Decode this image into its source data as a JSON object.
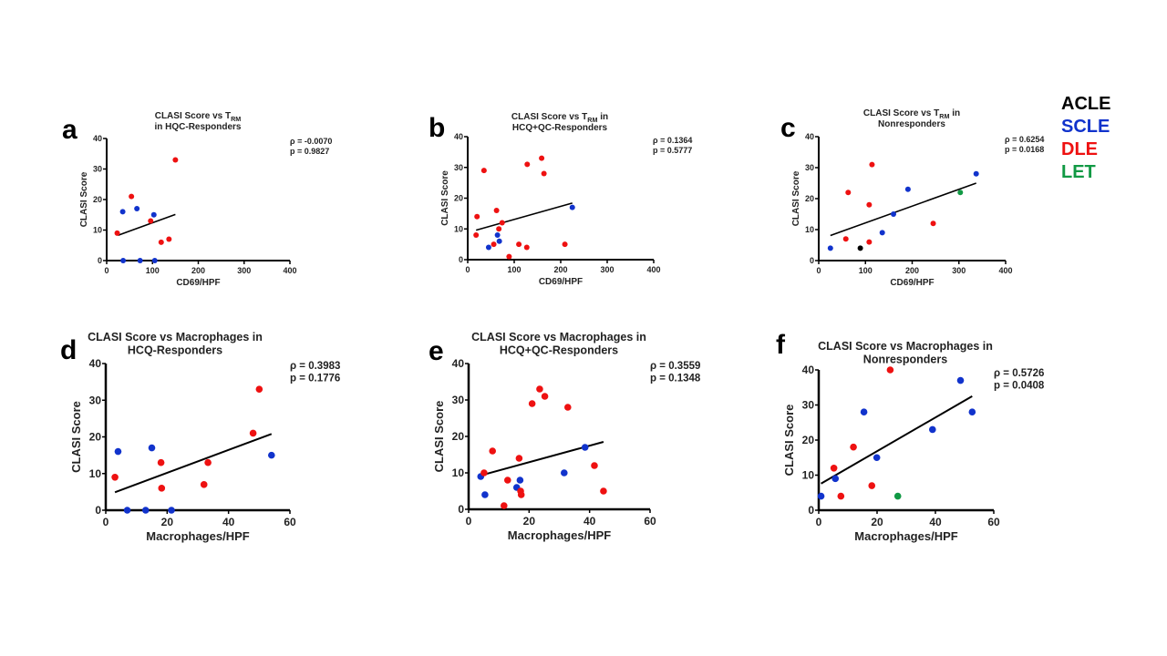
{
  "legend": [
    {
      "label": "ACLE",
      "color": "#000000"
    },
    {
      "label": "SCLE",
      "color": "#1133cc"
    },
    {
      "label": "DLE",
      "color": "#ee1111"
    },
    {
      "label": "LET",
      "color": "#119944"
    }
  ],
  "chart_data": [
    {
      "panel": "a",
      "type": "scatter",
      "title_main": "CLASI Score vs T",
      "title_sub": "RM",
      "title_line2": "in HQC-Responders",
      "xlabel": "CD69/HPF",
      "ylabel": "CLASI Score",
      "xlim": [
        0,
        400
      ],
      "ylim": [
        0,
        40
      ],
      "xticks": [
        0,
        100,
        200,
        300,
        400
      ],
      "yticks": [
        0,
        10,
        20,
        30,
        40
      ],
      "stats": [
        "ρ = -0.0070",
        "p = 0.9827"
      ],
      "fit_line": [
        [
          25,
          8.3
        ],
        [
          150,
          15.1
        ]
      ],
      "points": [
        {
          "x": 23,
          "y": 9,
          "group": "DLE"
        },
        {
          "x": 54,
          "y": 21,
          "group": "DLE"
        },
        {
          "x": 35,
          "y": 16,
          "group": "SCLE"
        },
        {
          "x": 66,
          "y": 17,
          "group": "SCLE"
        },
        {
          "x": 103,
          "y": 15,
          "group": "SCLE"
        },
        {
          "x": 96,
          "y": 13,
          "group": "DLE"
        },
        {
          "x": 150,
          "y": 33,
          "group": "DLE"
        },
        {
          "x": 119,
          "y": 6,
          "group": "DLE"
        },
        {
          "x": 136,
          "y": 7,
          "group": "DLE"
        },
        {
          "x": 36,
          "y": 0,
          "group": "SCLE"
        },
        {
          "x": 73,
          "y": 0,
          "group": "SCLE"
        },
        {
          "x": 105,
          "y": 0,
          "group": "SCLE"
        }
      ]
    },
    {
      "panel": "b",
      "type": "scatter",
      "title_main": "CLASI Score vs T",
      "title_sub": "RM",
      "title_suffix": " in",
      "title_line2": "HCQ+QC-Responders",
      "xlabel": "CD69/HPF",
      "ylabel": "CLASI Score",
      "xlim": [
        0,
        400
      ],
      "ylim": [
        0,
        40
      ],
      "xticks": [
        0,
        100,
        200,
        300,
        400
      ],
      "yticks": [
        0,
        10,
        20,
        30,
        40
      ],
      "stats": [
        "ρ = 0.1364",
        "p = 0.5777"
      ],
      "fit_line": [
        [
          18,
          9.6
        ],
        [
          225,
          18.4
        ]
      ],
      "points": [
        {
          "x": 18,
          "y": 8,
          "group": "DLE"
        },
        {
          "x": 20,
          "y": 14,
          "group": "DLE"
        },
        {
          "x": 35,
          "y": 29,
          "group": "DLE"
        },
        {
          "x": 62,
          "y": 16,
          "group": "DLE"
        },
        {
          "x": 56,
          "y": 5,
          "group": "DLE"
        },
        {
          "x": 45,
          "y": 4,
          "group": "SCLE"
        },
        {
          "x": 64,
          "y": 8,
          "group": "SCLE"
        },
        {
          "x": 68,
          "y": 6,
          "group": "SCLE"
        },
        {
          "x": 67,
          "y": 10,
          "group": "DLE"
        },
        {
          "x": 74,
          "y": 12,
          "group": "DLE"
        },
        {
          "x": 89,
          "y": 1,
          "group": "DLE"
        },
        {
          "x": 110,
          "y": 5,
          "group": "DLE"
        },
        {
          "x": 127,
          "y": 4,
          "group": "DLE"
        },
        {
          "x": 128,
          "y": 31,
          "group": "DLE"
        },
        {
          "x": 159,
          "y": 33,
          "group": "DLE"
        },
        {
          "x": 164,
          "y": 28,
          "group": "DLE"
        },
        {
          "x": 209,
          "y": 5,
          "group": "DLE"
        },
        {
          "x": 225,
          "y": 17,
          "group": "SCLE"
        }
      ]
    },
    {
      "panel": "c",
      "type": "scatter",
      "title_main": "CLASI Score vs T",
      "title_sub": "RM",
      "title_suffix": " in",
      "title_line2": "Nonresponders",
      "xlabel": "CD69/HPF",
      "ylabel": "CLASI Score",
      "xlim": [
        0,
        400
      ],
      "ylim": [
        0,
        40
      ],
      "xticks": [
        0,
        100,
        200,
        300,
        400
      ],
      "yticks": [
        0,
        10,
        20,
        30,
        40
      ],
      "stats": [
        "ρ = 0.6254",
        "p = 0.0168"
      ],
      "fit_line": [
        [
          25,
          8.1
        ],
        [
          337,
          25
        ]
      ],
      "points": [
        {
          "x": 25,
          "y": 4,
          "group": "SCLE"
        },
        {
          "x": 58,
          "y": 7,
          "group": "DLE"
        },
        {
          "x": 89,
          "y": 4,
          "group": "ACLE"
        },
        {
          "x": 63,
          "y": 22,
          "group": "DLE"
        },
        {
          "x": 108,
          "y": 18,
          "group": "DLE"
        },
        {
          "x": 108,
          "y": 6,
          "group": "DLE"
        },
        {
          "x": 114,
          "y": 31,
          "group": "DLE"
        },
        {
          "x": 136,
          "y": 9,
          "group": "SCLE"
        },
        {
          "x": 160,
          "y": 15,
          "group": "SCLE"
        },
        {
          "x": 191,
          "y": 23,
          "group": "SCLE"
        },
        {
          "x": 245,
          "y": 12,
          "group": "DLE"
        },
        {
          "x": 303,
          "y": 22,
          "group": "LET"
        },
        {
          "x": 337,
          "y": 28,
          "group": "SCLE"
        }
      ]
    },
    {
      "panel": "d",
      "type": "scatter",
      "title_main": "CLASI Score vs Macrophages in",
      "title_line2": "HCQ-Responders",
      "xlabel": "Macrophages/HPF",
      "ylabel": "CLASI Score",
      "xlim": [
        0,
        60
      ],
      "ylim": [
        0,
        40
      ],
      "xticks": [
        0,
        20,
        40,
        60
      ],
      "yticks": [
        0,
        10,
        20,
        30,
        40
      ],
      "stats": [
        "ρ = 0.3983",
        "p = 0.1776"
      ],
      "fit_line": [
        [
          3,
          4.9
        ],
        [
          54,
          20.8
        ]
      ],
      "points": [
        {
          "x": 3,
          "y": 9,
          "group": "DLE"
        },
        {
          "x": 4,
          "y": 16,
          "group": "SCLE"
        },
        {
          "x": 7,
          "y": 0,
          "group": "SCLE"
        },
        {
          "x": 13,
          "y": 0,
          "group": "SCLE"
        },
        {
          "x": 21.4,
          "y": 0,
          "group": "SCLE"
        },
        {
          "x": 15,
          "y": 17,
          "group": "SCLE"
        },
        {
          "x": 18,
          "y": 13,
          "group": "DLE"
        },
        {
          "x": 18.2,
          "y": 6,
          "group": "DLE"
        },
        {
          "x": 32,
          "y": 7,
          "group": "DLE"
        },
        {
          "x": 33.3,
          "y": 13,
          "group": "DLE"
        },
        {
          "x": 48,
          "y": 21,
          "group": "DLE"
        },
        {
          "x": 50,
          "y": 33,
          "group": "DLE"
        },
        {
          "x": 54,
          "y": 15,
          "group": "SCLE"
        }
      ]
    },
    {
      "panel": "e",
      "type": "scatter",
      "title_main": "CLASI Score vs Macrophages in",
      "title_line2": "HCQ+QC-Responders",
      "xlabel": "Macrophages/HPF",
      "ylabel": "CLASI Score",
      "xlim": [
        0,
        60
      ],
      "ylim": [
        0,
        40
      ],
      "xticks": [
        0,
        20,
        40,
        60
      ],
      "yticks": [
        0,
        10,
        20,
        30,
        40
      ],
      "stats": [
        "ρ = 0.3559",
        "p = 0.1348"
      ],
      "fit_line": [
        [
          4,
          9.3
        ],
        [
          44.6,
          18.5
        ]
      ],
      "points": [
        {
          "x": 4,
          "y": 9,
          "group": "SCLE"
        },
        {
          "x": 5.1,
          "y": 10,
          "group": "DLE"
        },
        {
          "x": 5.4,
          "y": 4,
          "group": "SCLE"
        },
        {
          "x": 7.9,
          "y": 16,
          "group": "DLE"
        },
        {
          "x": 11.7,
          "y": 1,
          "group": "DLE"
        },
        {
          "x": 12.9,
          "y": 8,
          "group": "DLE"
        },
        {
          "x": 15.9,
          "y": 6,
          "group": "SCLE"
        },
        {
          "x": 17,
          "y": 8,
          "group": "SCLE"
        },
        {
          "x": 16.7,
          "y": 14,
          "group": "DLE"
        },
        {
          "x": 17.2,
          "y": 5,
          "group": "DLE"
        },
        {
          "x": 17.4,
          "y": 4,
          "group": "DLE"
        },
        {
          "x": 21,
          "y": 29,
          "group": "DLE"
        },
        {
          "x": 23.5,
          "y": 33,
          "group": "DLE"
        },
        {
          "x": 25.2,
          "y": 31,
          "group": "DLE"
        },
        {
          "x": 32.8,
          "y": 28,
          "group": "DLE"
        },
        {
          "x": 31.6,
          "y": 10,
          "group": "SCLE"
        },
        {
          "x": 38.5,
          "y": 17,
          "group": "SCLE"
        },
        {
          "x": 41.6,
          "y": 12,
          "group": "DLE"
        },
        {
          "x": 44.6,
          "y": 5,
          "group": "DLE"
        }
      ]
    },
    {
      "panel": "f",
      "type": "scatter",
      "title_main": "CLASI Score vs Macrophages in",
      "title_line2": "Nonresponders",
      "xlabel": "Macrophages/HPF",
      "ylabel": "CLASI Score",
      "xlim": [
        0,
        60
      ],
      "ylim": [
        0,
        40
      ],
      "xticks": [
        0,
        20,
        40,
        60
      ],
      "yticks": [
        0,
        10,
        20,
        30,
        40
      ],
      "stats": [
        "ρ = 0.5726",
        "p = 0.0408"
      ],
      "fit_line": [
        [
          0.8,
          7.6
        ],
        [
          52.6,
          32.5
        ]
      ],
      "points": [
        {
          "x": 0.8,
          "y": 4,
          "group": "SCLE"
        },
        {
          "x": 5.2,
          "y": 12,
          "group": "DLE"
        },
        {
          "x": 5.7,
          "y": 9,
          "group": "SCLE"
        },
        {
          "x": 7.6,
          "y": 4,
          "group": "DLE"
        },
        {
          "x": 11.9,
          "y": 18,
          "group": "DLE"
        },
        {
          "x": 15.5,
          "y": 28,
          "group": "SCLE"
        },
        {
          "x": 18.2,
          "y": 7,
          "group": "DLE"
        },
        {
          "x": 19.9,
          "y": 15,
          "group": "SCLE"
        },
        {
          "x": 24.5,
          "y": 40,
          "group": "DLE"
        },
        {
          "x": 27.1,
          "y": 4,
          "group": "LET"
        },
        {
          "x": 39,
          "y": 23,
          "group": "SCLE"
        },
        {
          "x": 48.6,
          "y": 37,
          "group": "SCLE"
        },
        {
          "x": 52.6,
          "y": 28,
          "group": "SCLE"
        }
      ]
    }
  ]
}
